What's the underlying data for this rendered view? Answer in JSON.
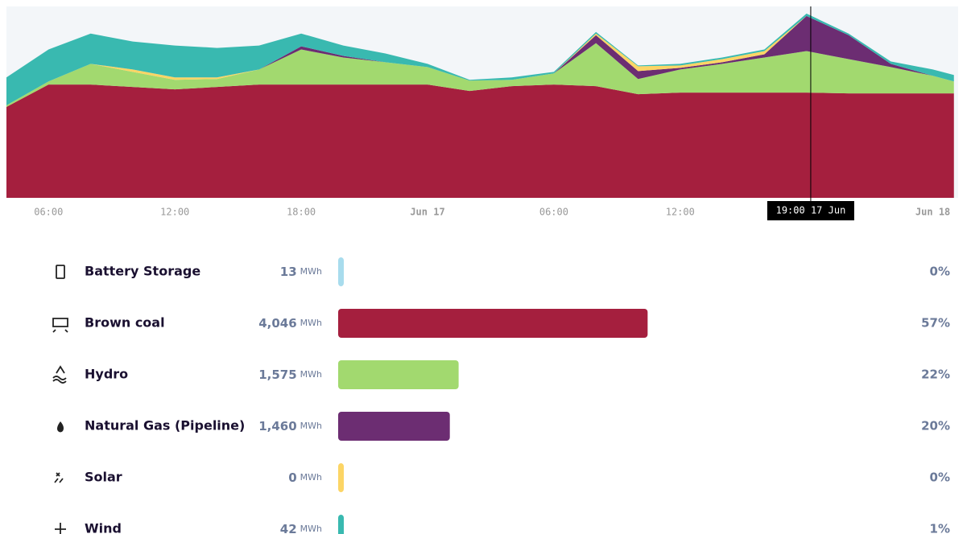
{
  "chart_data": [
    {
      "type": "stacked-area",
      "x": [
        4,
        6,
        8,
        10,
        12,
        14,
        16,
        18,
        20,
        22,
        24,
        26,
        28,
        30,
        32,
        34,
        36,
        38,
        40,
        42,
        44,
        46,
        48,
        49
      ],
      "xlim": [
        4,
        49.2
      ],
      "xticks": [
        {
          "value": 6,
          "label": "06:00"
        },
        {
          "value": 12,
          "label": "12:00"
        },
        {
          "value": 18,
          "label": "18:00"
        },
        {
          "value": 24,
          "label": "Jun 17"
        },
        {
          "value": 30,
          "label": "06:00"
        },
        {
          "value": 36,
          "label": "12:00"
        },
        {
          "value": 48,
          "label": "Jun 18"
        }
      ],
      "ylim": [
        0,
        240
      ],
      "annotation": {
        "x": 42.2,
        "label": "19:00 17 Jun"
      },
      "series": [
        {
          "name": "Brown coal",
          "color": "#a51f3e",
          "values": [
            114,
            142,
            142,
            139,
            136,
            139,
            142,
            142,
            142,
            142,
            142,
            134,
            140,
            142,
            140,
            130,
            132,
            132,
            132,
            132,
            131,
            131,
            131,
            131
          ]
        },
        {
          "name": "Hydro",
          "color": "#a2d96f",
          "values": [
            2,
            4,
            26,
            19,
            12,
            10,
            19,
            44,
            34,
            28,
            22,
            13,
            8,
            14,
            54,
            19,
            29,
            36,
            44,
            52,
            43,
            33,
            22,
            15
          ]
        },
        {
          "name": "Natural Gas (Pipeline)",
          "color": "#6c2d72",
          "values": [
            0,
            0,
            0,
            0,
            0,
            0,
            0,
            4,
            2,
            0,
            0,
            0,
            0,
            0,
            10,
            10,
            2,
            2,
            4,
            44,
            30,
            4,
            0,
            0
          ]
        },
        {
          "name": "Solar",
          "color": "#fcd565",
          "values": [
            0,
            0,
            0,
            3,
            3,
            2,
            0,
            0,
            0,
            0,
            0,
            0,
            0,
            0,
            2,
            6,
            3,
            4,
            4,
            0,
            0,
            0,
            0,
            0
          ]
        },
        {
          "name": "Wind",
          "color": "#39b9b0",
          "values": [
            35,
            40,
            38,
            35,
            40,
            37,
            30,
            16,
            13,
            11,
            4,
            1,
            3,
            2,
            2,
            1,
            2,
            2,
            2,
            3,
            2,
            3,
            8,
            8
          ]
        }
      ]
    },
    {
      "type": "hbar",
      "unit": "MWh",
      "xlim": [
        0,
        8000
      ],
      "categories": [
        "Battery Storage",
        "Brown coal",
        "Hydro",
        "Natural Gas (Pipeline)",
        "Solar",
        "Wind"
      ],
      "values": [
        13,
        4046,
        1575,
        1460,
        0,
        42
      ],
      "value_labels": [
        "13",
        "4,046",
        "1,575",
        "1,460",
        "0",
        "42"
      ],
      "colors": [
        "#a8dced",
        "#a51f3e",
        "#a2d96f",
        "#6c2d72",
        "#fcd565",
        "#39b9b0"
      ],
      "shares": [
        0,
        57,
        22,
        20,
        0,
        1
      ],
      "share_labels": [
        "0%",
        "57%",
        "22%",
        "20%",
        "0%",
        "1%"
      ]
    }
  ]
}
